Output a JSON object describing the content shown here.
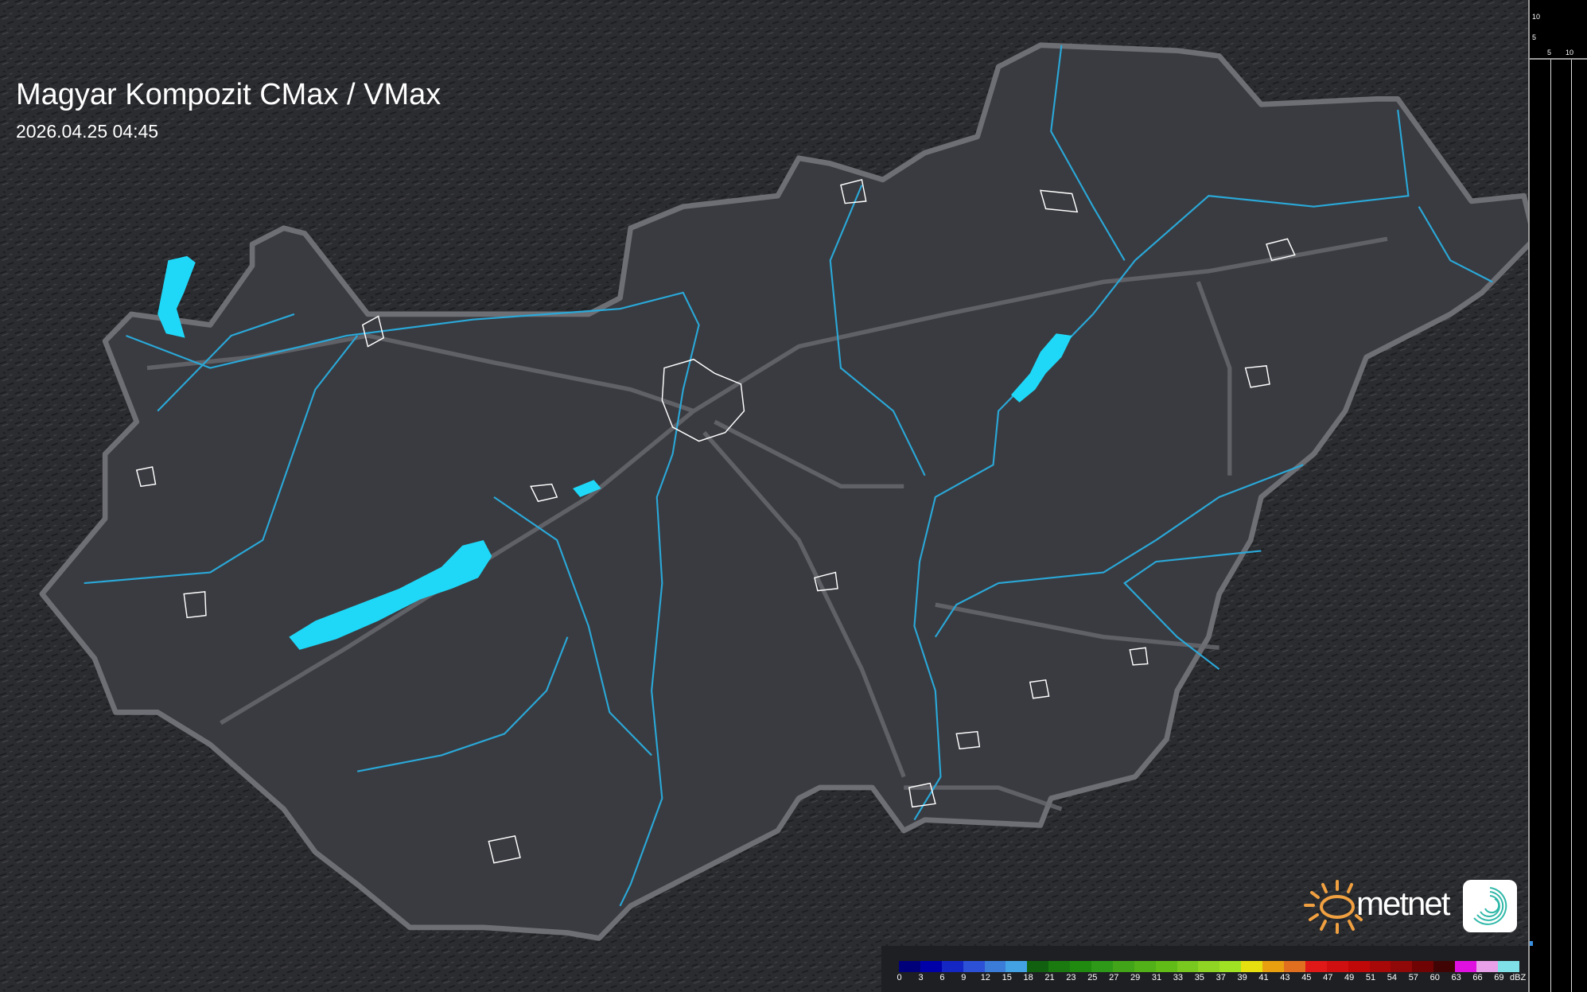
{
  "title": "Magyar Kompozit CMax / VMax",
  "timestamp": "2026.04.25 04:45",
  "axis_labels": {
    "left_10": "10",
    "left_5": "5",
    "bottom_5": "5",
    "bottom_10": "10"
  },
  "logo": {
    "text": "metnet",
    "sun_color": "#f0a040",
    "spiral_color": "#30b8a8"
  },
  "colors": {
    "background": "#2a2b2f",
    "country_fill": "#3a3b40",
    "border": "#6e6f74",
    "water": "#1fd8f8",
    "rivers": "#2aa8d8"
  },
  "legend": {
    "unit": "dBZ",
    "labels": [
      "0",
      "3",
      "6",
      "9",
      "12",
      "15",
      "18",
      "21",
      "23",
      "25",
      "27",
      "29",
      "31",
      "33",
      "35",
      "37",
      "39",
      "41",
      "43",
      "45",
      "47",
      "49",
      "51",
      "54",
      "57",
      "60",
      "63",
      "66",
      "69"
    ],
    "colors": [
      "#00007a",
      "#0000a8",
      "#1426c4",
      "#2c50d6",
      "#3a7cd8",
      "#42a2e4",
      "#106010",
      "#1a7a10",
      "#208a10",
      "#2e9818",
      "#42a418",
      "#52b018",
      "#62bc18",
      "#78c820",
      "#90d424",
      "#a0e224",
      "#e6e010",
      "#e8a010",
      "#e07020",
      "#e01818",
      "#d01010",
      "#c00808",
      "#a80808",
      "#900808",
      "#700404",
      "#400404",
      "#e010e0",
      "#e8a0e8",
      "#80e0e8"
    ]
  }
}
